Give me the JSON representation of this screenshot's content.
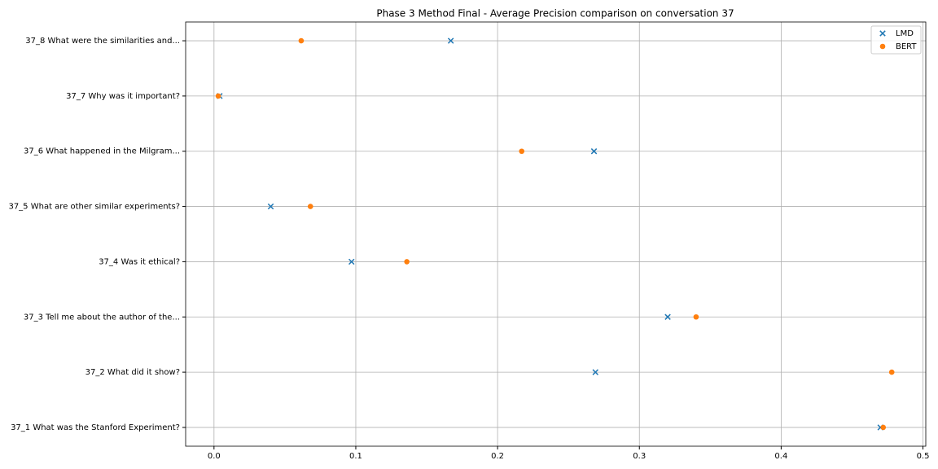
{
  "chart_data": {
    "type": "scatter",
    "orientation": "horizontal",
    "title": "Phase 3 Method Final - Average Precision comparison on conversation 37",
    "categories": [
      "37_1 What was the Stanford Experiment?",
      "37_2 What did it show?",
      "37_3 Tell me about the author of the...",
      "37_4 Was it ethical?",
      "37_5 What are other similar experiments?",
      "37_6 What happened in the Milgram...",
      "37_7 Why was it important?",
      "37_8 What were the similarities and..."
    ],
    "series": [
      {
        "name": "LMD",
        "color": "#1f77b4",
        "marker": "x",
        "values": [
          0.47,
          0.269,
          0.32,
          0.097,
          0.04,
          0.268,
          0.004,
          0.167
        ]
      },
      {
        "name": "BERT",
        "color": "#ff7f0e",
        "marker": "o",
        "values": [
          0.472,
          0.478,
          0.34,
          0.136,
          0.068,
          0.217,
          0.003,
          0.0615
        ]
      }
    ],
    "xlim": [
      -0.02,
      0.502
    ],
    "xticks": [
      {
        "value": 0,
        "label": "0.0"
      },
      0.1,
      0.2,
      0.3,
      0.4,
      0.5
    ],
    "grid": true,
    "legend": "upper right"
  }
}
